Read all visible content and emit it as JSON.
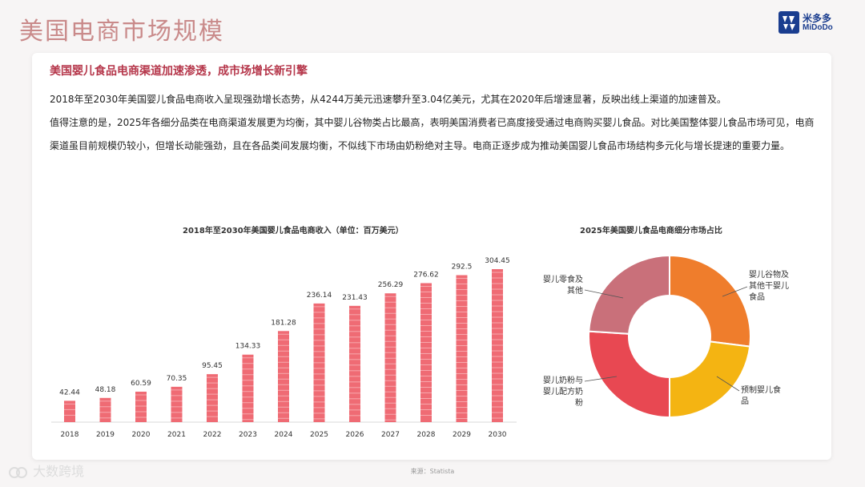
{
  "page": {
    "title": "美国电商市场规模",
    "logo_cn": "米多多",
    "logo_en": "MiDoDo",
    "footer_brand": "大数跨境",
    "source": "来源：Statista"
  },
  "card": {
    "headline": "美国婴儿食品电商渠道加速渗透，成市场增长新引擎",
    "paragraph1": "2018年至2030年美国婴儿食品电商收入呈现强劲增长态势，从4244万美元迅速攀升至3.04亿美元，尤其在2020年后增速显著，反映出线上渠道的加速普及。",
    "paragraph2": "值得注意的是，2025年各细分品类在电商渠道发展更为均衡，其中婴儿谷物类占比最高，表明美国消费者已高度接受通过电商购买婴儿食品。对比美国整体婴儿食品市场可见，电商渠道虽目前规模仍较小，但增长动能强劲，且在各品类间发展均衡，不似线下市场由奶粉绝对主导。电商正逐步成为推动美国婴儿食品市场结构多元化与增长提速的重要力量。"
  },
  "chart_data": [
    {
      "type": "bar",
      "title": "2018年至2030年美国婴儿食品电商收入（单位：百万美元）",
      "categories": [
        "2018",
        "2019",
        "2020",
        "2021",
        "2022",
        "2023",
        "2024",
        "2025",
        "2026",
        "2027",
        "2028",
        "2029",
        "2030"
      ],
      "values": [
        42.44,
        48.18,
        60.59,
        70.35,
        95.45,
        134.33,
        181.28,
        236.14,
        231.43,
        256.29,
        276.62,
        292.5,
        304.45
      ],
      "value_labels": [
        "42.44",
        "48.18",
        "60.59",
        "70.35",
        "95.45",
        "134.33",
        "181.28",
        "236.14",
        "231.43",
        "256.29",
        "276.62",
        "292.5",
        "304.45"
      ],
      "ylim": [
        0,
        330
      ],
      "grid": false,
      "color": "#ef6b74"
    },
    {
      "type": "pie",
      "style": "donut",
      "title": "2025年美国婴儿食品电商细分市场占比",
      "labels": [
        [
          "婴儿谷物及",
          "其他干婴儿",
          "食品"
        ],
        [
          "预制婴儿食",
          "品"
        ],
        [
          "婴儿奶粉与",
          "婴儿配方奶",
          "粉"
        ],
        [
          "婴儿零食及",
          "其他"
        ]
      ],
      "values": [
        27,
        23,
        26,
        24
      ],
      "colors": [
        "#ef7d2c",
        "#f4b412",
        "#e84852",
        "#c9707a"
      ]
    }
  ]
}
